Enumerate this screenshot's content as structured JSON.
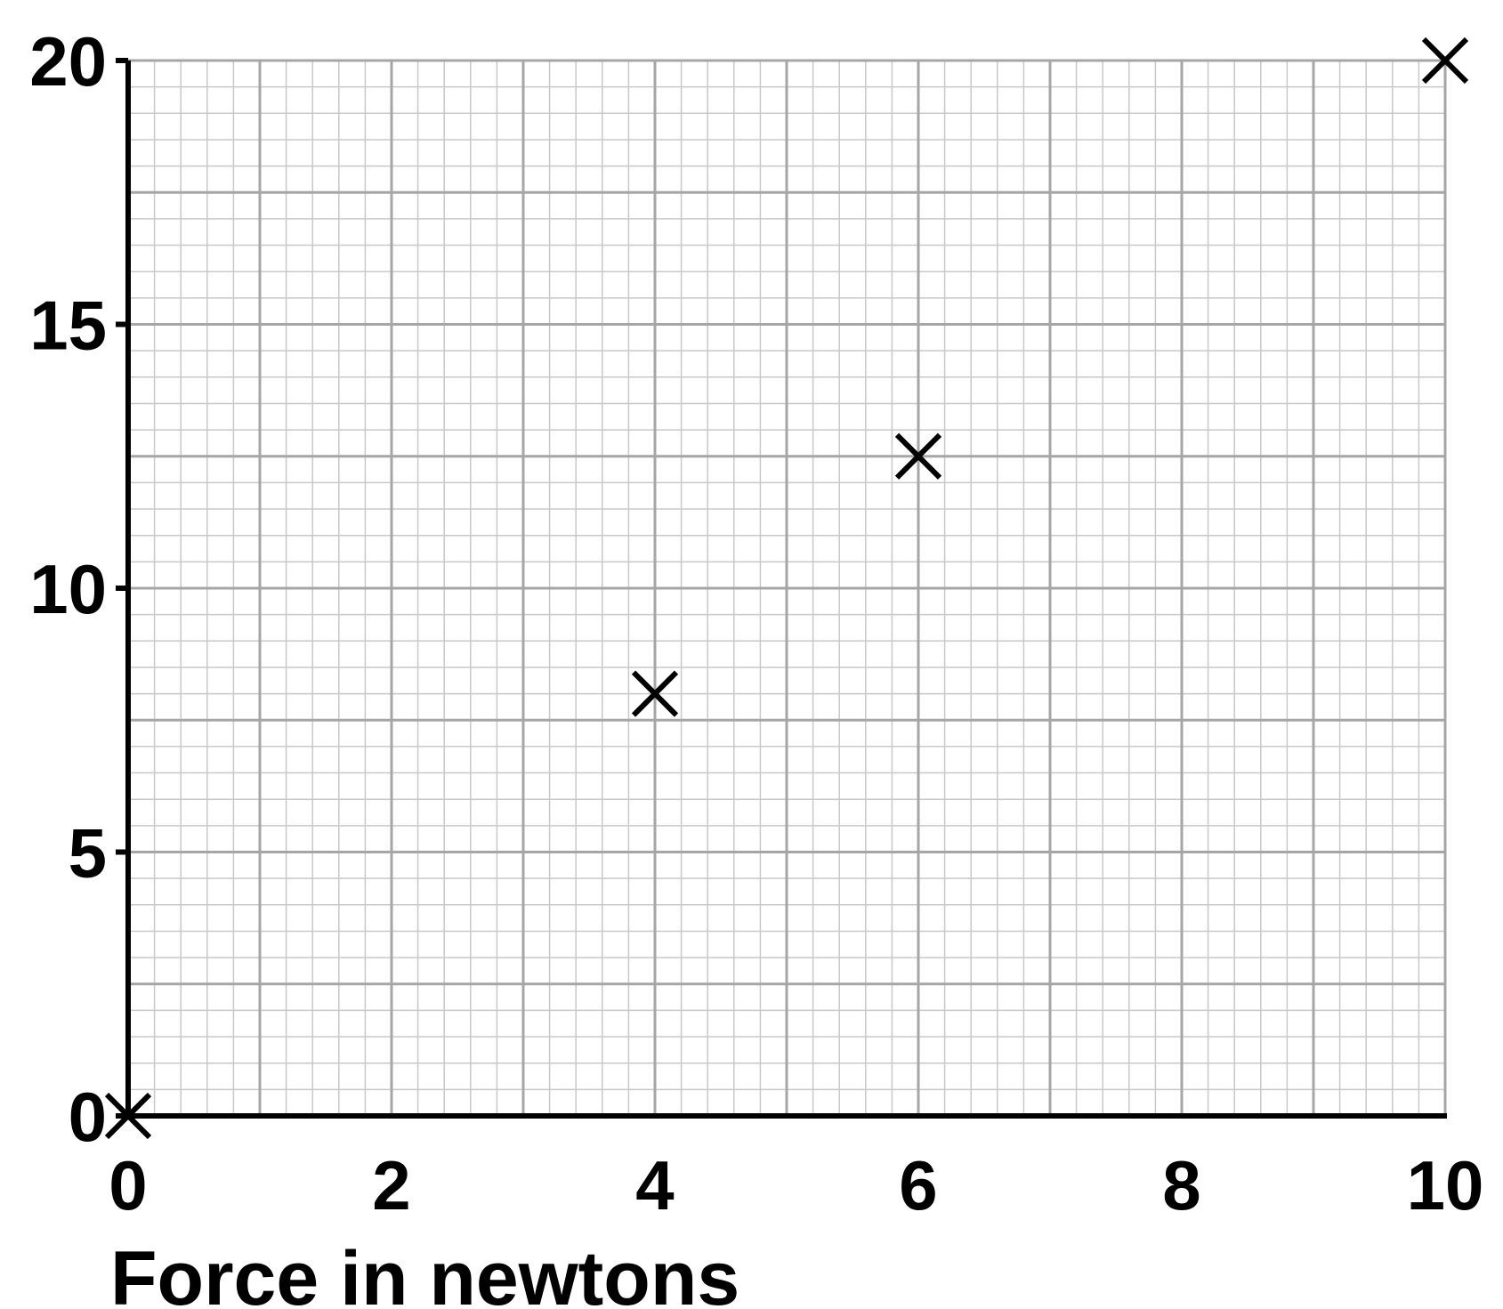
{
  "chart_data": {
    "type": "scatter",
    "title": "",
    "xlabel": "Force in newtons",
    "ylabel": "",
    "xlim": [
      0,
      10
    ],
    "ylim": [
      0,
      20
    ],
    "x_ticks": [
      0,
      2,
      4,
      6,
      8,
      10
    ],
    "y_ticks": [
      0,
      5,
      10,
      15,
      20
    ],
    "x_tick_labels": [
      "0",
      "2",
      "4",
      "6",
      "8",
      "10"
    ],
    "y_tick_labels": [
      "0",
      "5",
      "10",
      "15",
      "20"
    ],
    "grid": true,
    "legend": "none",
    "marker": "x",
    "series": [
      {
        "x": [
          0,
          4,
          6,
          10
        ],
        "y": [
          0,
          8,
          12.5,
          20
        ]
      }
    ],
    "colors": {
      "axis": "#000000",
      "grid_major": "#a6a6a6",
      "grid_minor": "#c8c8c8",
      "marker": "#000000"
    }
  }
}
